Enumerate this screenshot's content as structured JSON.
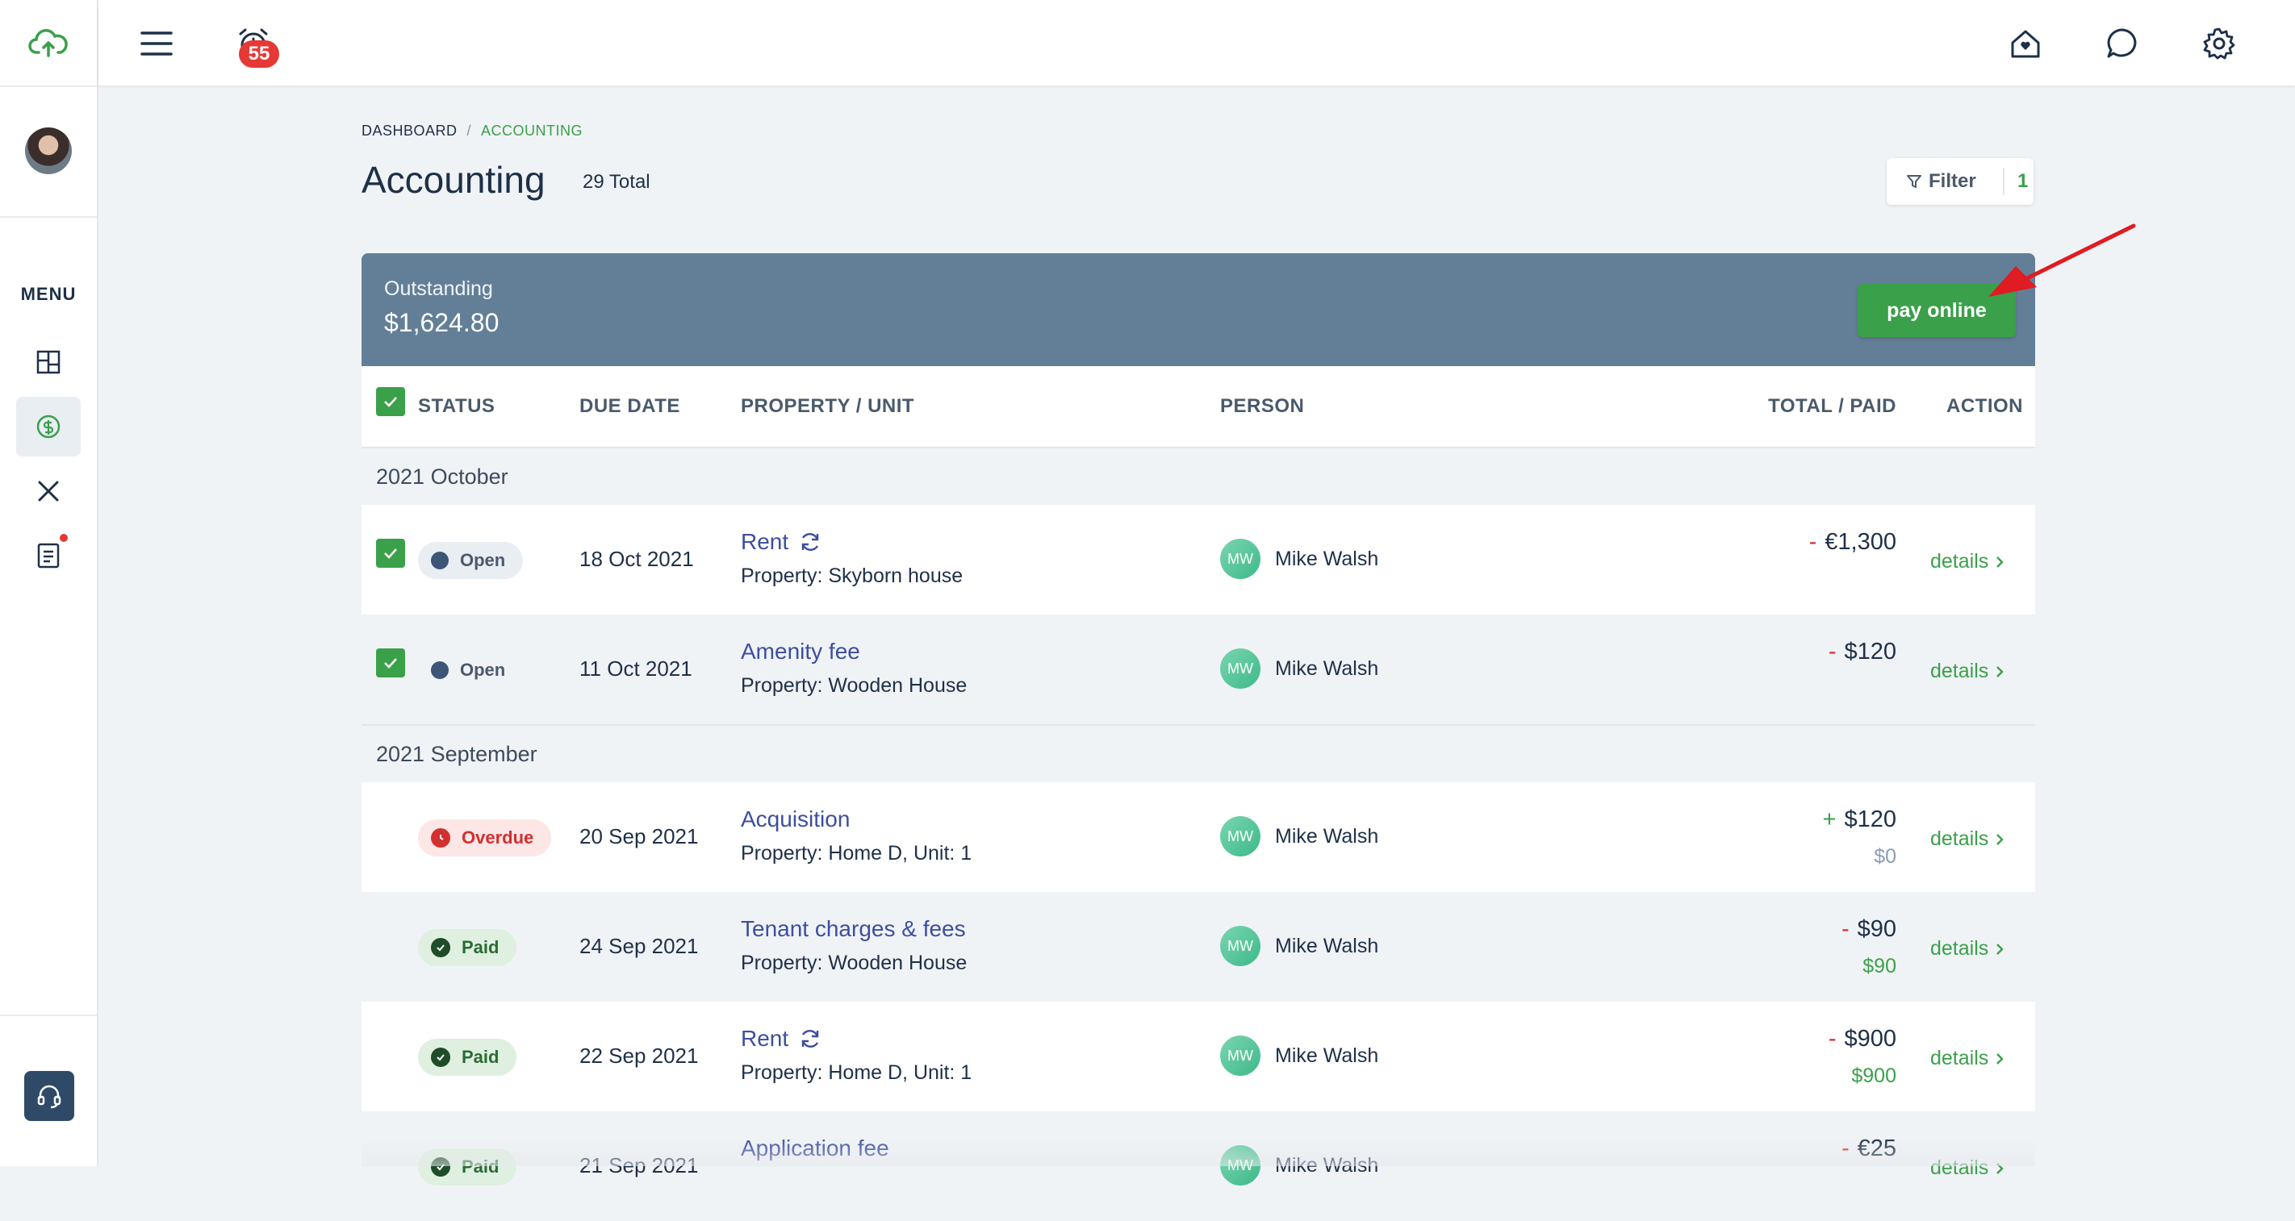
{
  "topbar": {
    "notification_count": "55"
  },
  "sidebar": {
    "menu_label": "MENU"
  },
  "breadcrumb": {
    "dashboard": "DASHBOARD",
    "separator": "/",
    "current": "ACCOUNTING"
  },
  "page": {
    "title": "Accounting",
    "total": "29 Total"
  },
  "filter": {
    "label": "Filter",
    "count": "1"
  },
  "outstanding": {
    "label": "Outstanding",
    "value": "$1,624.80",
    "pay_button": "pay online"
  },
  "table": {
    "headers": {
      "status": "STATUS",
      "due_date": "DUE DATE",
      "property": "PROPERTY / UNIT",
      "person": "PERSON",
      "total": "TOTAL / PAID",
      "action": "ACTION"
    },
    "groups": [
      {
        "label": "2021 October",
        "rows": [
          {
            "status": "Open",
            "date": "18 Oct 2021",
            "title": "Rent",
            "sub": "Property: Skyborn house",
            "initials": "MW",
            "person": "Mike Walsh",
            "sign": "-",
            "amount": "€1,300",
            "paid": "",
            "action": "details"
          },
          {
            "status": "Open",
            "date": "11 Oct 2021",
            "title": "Amenity fee",
            "sub": "Property: Wooden House",
            "initials": "MW",
            "person": "Mike Walsh",
            "sign": "-",
            "amount": "$120",
            "paid": "",
            "action": "details"
          }
        ]
      },
      {
        "label": "2021 September",
        "rows": [
          {
            "status": "Overdue",
            "date": "20 Sep 2021",
            "title": "Acquisition",
            "sub": "Property: Home D, Unit: 1",
            "initials": "MW",
            "person": "Mike Walsh",
            "sign": "+",
            "amount": "$120",
            "paid": "$0",
            "action": "details"
          },
          {
            "status": "Paid",
            "date": "24 Sep 2021",
            "title": "Tenant charges & fees",
            "sub": "Property: Wooden House",
            "initials": "MW",
            "person": "Mike Walsh",
            "sign": "-",
            "amount": "$90",
            "paid": "$90",
            "action": "details"
          },
          {
            "status": "Paid",
            "date": "22 Sep 2021",
            "title": "Rent",
            "sub": "Property: Home D, Unit: 1",
            "initials": "MW",
            "person": "Mike Walsh",
            "sign": "-",
            "amount": "$900",
            "paid": "$900",
            "action": "details"
          },
          {
            "status": "Paid",
            "date": "21 Sep 2021",
            "title": "Application fee",
            "sub": "",
            "initials": "MW",
            "person": "Mike Walsh",
            "sign": "-",
            "amount": "€25",
            "paid": "",
            "action": "details"
          }
        ]
      }
    ]
  },
  "colors": {
    "accent": "#3aa04a",
    "banner": "#637f98",
    "danger": "#d32f2f",
    "link": "#3d4ea0"
  }
}
